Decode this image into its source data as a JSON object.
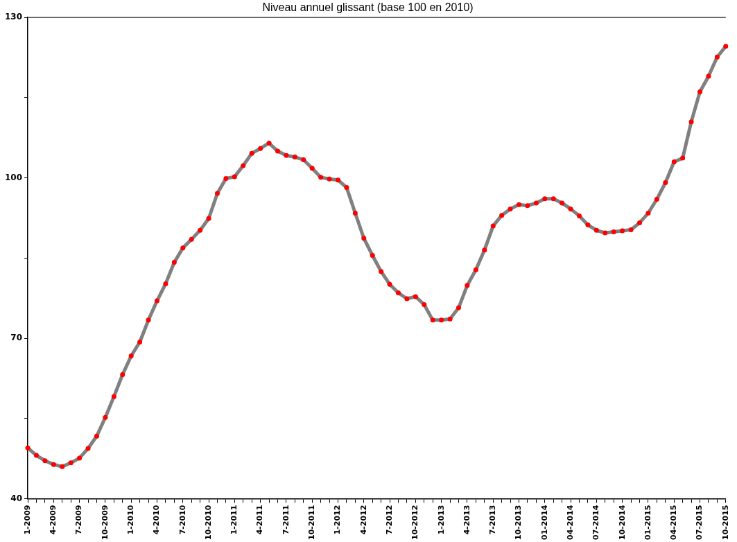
{
  "chart_data": {
    "type": "line",
    "title": "Niveau annuel glissant (base 100 en 2010)",
    "categories": [
      "1-2009",
      null,
      null,
      "4-2009",
      null,
      null,
      "7-2009",
      null,
      null,
      "10-2009",
      null,
      null,
      "1-2010",
      null,
      null,
      "4-2010",
      null,
      null,
      "7-2010",
      null,
      null,
      "10-2010",
      null,
      null,
      "1-2011",
      null,
      null,
      "4-2011",
      null,
      null,
      "7-2011",
      null,
      null,
      "10-2011",
      null,
      null,
      "1-2012",
      null,
      null,
      "4-2012",
      null,
      null,
      "7-2012",
      null,
      null,
      "10-2012",
      null,
      null,
      "1-2013",
      null,
      null,
      "4-2013",
      null,
      null,
      "7-2013",
      null,
      null,
      "10-2013",
      null,
      null,
      "01-2014",
      null,
      null,
      "04-2014",
      null,
      null,
      "07-2014",
      null,
      null,
      "10-2014",
      null,
      null,
      "01-2015",
      null,
      null,
      "04-2015",
      null,
      null,
      "07-2015",
      null,
      null,
      "10-2015"
    ],
    "series": [
      {
        "color": "#808080",
        "values": [
          49.5,
          48.1,
          47.1,
          46.4,
          46.0,
          46.7,
          47.6,
          49.4,
          51.7,
          55.2,
          59.1,
          63.2,
          66.7,
          69.3,
          73.4,
          77.0,
          80.2,
          84.2,
          86.9,
          88.5,
          90.2,
          92.4,
          97.1,
          99.9,
          100.2,
          102.3,
          104.6,
          105.5,
          106.5,
          105.0,
          104.2,
          103.9,
          103.4,
          101.8,
          100.1,
          99.8,
          99.6,
          98.2,
          93.4,
          88.7,
          85.5,
          82.5,
          80.1,
          78.5,
          77.4,
          77.8,
          76.3,
          73.4,
          73.4,
          73.6,
          75.7,
          79.9,
          82.8,
          86.5,
          91.0,
          93.0,
          94.2,
          95.0,
          94.8,
          95.3,
          96.1,
          96.1,
          95.3,
          94.2,
          92.9,
          91.2,
          90.2,
          89.7,
          89.9,
          90.1,
          90.3,
          91.6,
          93.4,
          96.0,
          99.1,
          103.0,
          103.7,
          110.5,
          116.1,
          119.0,
          122.6,
          124.6
        ]
      }
    ],
    "ylim": [
      40,
      130
    ],
    "yticks": [
      40,
      {
        "value": 55,
        "label": null
      },
      70,
      {
        "value": 85,
        "label": null
      },
      100,
      {
        "value": 115,
        "label": null
      },
      130
    ],
    "grid": false,
    "legend": false,
    "marker": "circle",
    "line_style": "solid"
  }
}
